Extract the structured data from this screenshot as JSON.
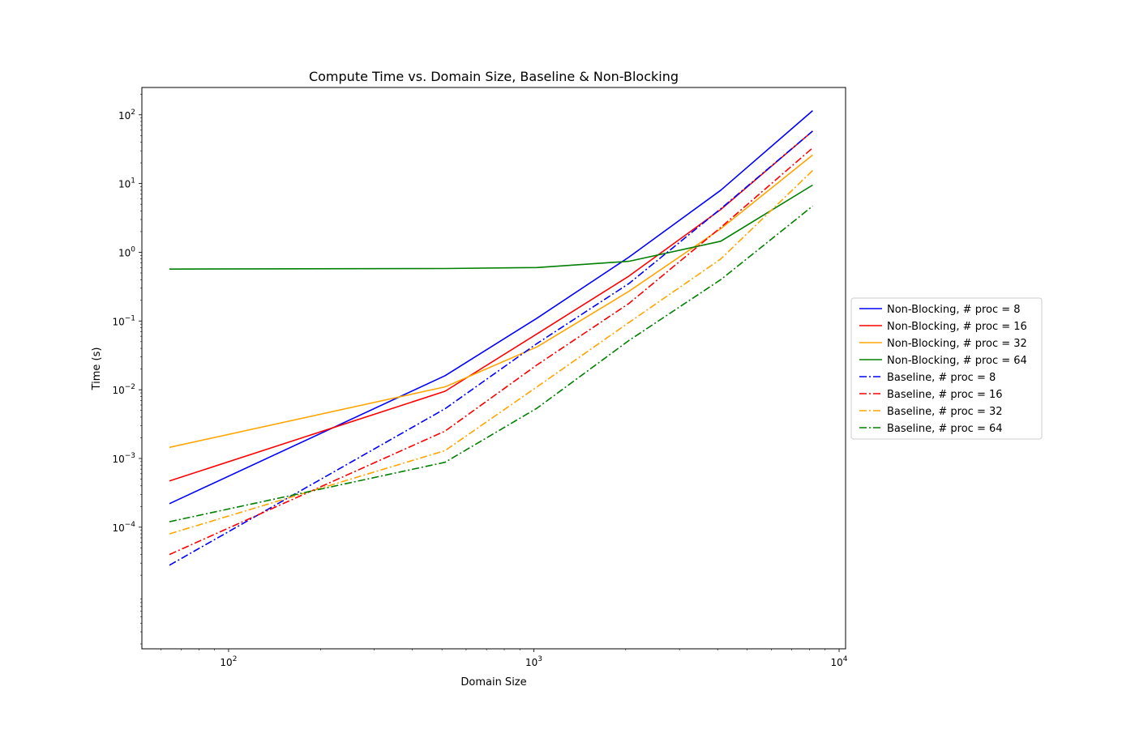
{
  "chart_data": {
    "type": "line",
    "title": "Compute Time vs. Domain Size, Baseline & Non-Blocking",
    "xlabel": "Domain Size",
    "ylabel": "Time (s)",
    "xscale": "log",
    "yscale": "log",
    "xlim": [
      52,
      10500
    ],
    "ylim": [
      1.7e-06,
      250
    ],
    "grid": false,
    "legend_placement": "center-right outside",
    "x": [
      64,
      512,
      1024,
      2048,
      4096,
      8192
    ],
    "x_ticks": [
      {
        "value": 100,
        "base": "10",
        "exp": "2"
      },
      {
        "value": 1000,
        "base": "10",
        "exp": "3"
      },
      {
        "value": 10000,
        "base": "10",
        "exp": "4"
      }
    ],
    "y_ticks": [
      {
        "value": 0.0001,
        "base": "10",
        "exp": "−4"
      },
      {
        "value": 0.001,
        "base": "10",
        "exp": "−3"
      },
      {
        "value": 0.01,
        "base": "10",
        "exp": "−2"
      },
      {
        "value": 0.1,
        "base": "10",
        "exp": "−1"
      },
      {
        "value": 1,
        "base": "10",
        "exp": "0"
      },
      {
        "value": 10,
        "base": "10",
        "exp": "1"
      },
      {
        "value": 100,
        "base": "10",
        "exp": "2"
      }
    ],
    "series": [
      {
        "name": "Non-Blocking, # proc = 8",
        "color": "#0000ff",
        "style": "solid",
        "values": [
          0.00022,
          0.016,
          0.11,
          0.85,
          8.0,
          115
        ]
      },
      {
        "name": "Non-Blocking, # proc = 16",
        "color": "#ff0000",
        "style": "solid",
        "values": [
          0.00047,
          0.0095,
          0.065,
          0.45,
          4.2,
          58
        ]
      },
      {
        "name": "Non-Blocking, # proc = 32",
        "color": "#ffa500",
        "style": "solid",
        "values": [
          0.00145,
          0.011,
          0.042,
          0.27,
          2.2,
          26
        ]
      },
      {
        "name": "Non-Blocking, # proc = 64",
        "color": "#008000",
        "style": "solid",
        "values": [
          0.57,
          0.58,
          0.6,
          0.74,
          1.45,
          9.5
        ]
      },
      {
        "name": "Baseline, # proc = 8",
        "color": "#0000ff",
        "style": "dashdot",
        "values": [
          2.8e-05,
          0.0053,
          0.047,
          0.35,
          4.3,
          58
        ]
      },
      {
        "name": "Baseline, # proc = 16",
        "color": "#ff0000",
        "style": "dashdot",
        "values": [
          4e-05,
          0.0025,
          0.023,
          0.18,
          2.3,
          33
        ]
      },
      {
        "name": "Baseline, # proc = 32",
        "color": "#ffa500",
        "style": "dashdot",
        "values": [
          8e-05,
          0.0013,
          0.011,
          0.095,
          0.8,
          15.5
        ]
      },
      {
        "name": "Baseline, # proc = 64",
        "color": "#008000",
        "style": "dashdot",
        "values": [
          0.00012,
          0.00088,
          0.0054,
          0.052,
          0.4,
          4.7
        ]
      }
    ]
  }
}
